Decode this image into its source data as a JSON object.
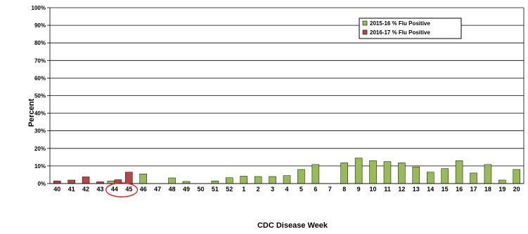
{
  "chart_data": {
    "type": "bar",
    "xlabel": "CDC Disease Week",
    "ylabel": "Percent",
    "ylim": [
      0,
      100
    ],
    "y_ticks": [
      "0%",
      "10%",
      "20%",
      "30%",
      "40%",
      "50%",
      "60%",
      "70%",
      "80%",
      "90%",
      "100%"
    ],
    "grid": true,
    "legend_position": "top-right",
    "categories": [
      "40",
      "41",
      "42",
      "43",
      "44",
      "45",
      "46",
      "47",
      "48",
      "49",
      "50",
      "51",
      "52",
      "1",
      "2",
      "3",
      "4",
      "5",
      "6",
      "7",
      "8",
      "9",
      "10",
      "11",
      "12",
      "13",
      "14",
      "15",
      "16",
      "17",
      "18",
      "19",
      "20"
    ],
    "series": [
      {
        "name": "2015-16 % Flu Positive",
        "color": "#99bb55",
        "values": [
          0,
          0,
          0,
          0,
          1.5,
          0,
          5.5,
          0,
          3.2,
          1.2,
          0,
          1.5,
          3.3,
          4.2,
          4.0,
          4.0,
          4.5,
          8.0,
          10.8,
          0,
          11.8,
          14.5,
          13.0,
          12.5,
          11.8,
          9.5,
          6.5,
          8.5,
          13.0,
          6.0,
          10.8,
          2.0,
          8.0
        ]
      },
      {
        "name": "2016-17 % Flu Positive",
        "color": "#bb4444",
        "values": [
          1.5,
          2.0,
          3.8,
          1.0,
          2.2,
          6.5,
          null,
          null,
          null,
          null,
          null,
          null,
          null,
          null,
          null,
          null,
          null,
          null,
          null,
          null,
          null,
          null,
          null,
          null,
          null,
          null,
          null,
          null,
          null,
          null,
          null,
          null,
          null
        ]
      }
    ],
    "annotation": {
      "type": "ellipse",
      "highlight_categories": [
        "44",
        "45"
      ],
      "color": "#e02020"
    }
  }
}
